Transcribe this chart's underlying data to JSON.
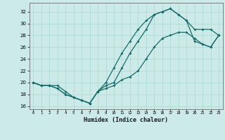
{
  "xlabel": "Humidex (Indice chaleur)",
  "hours": [
    0,
    1,
    2,
    3,
    4,
    5,
    6,
    7,
    8,
    9,
    10,
    11,
    12,
    13,
    14,
    15,
    16,
    17,
    18,
    19,
    20,
    21,
    22,
    23
  ],
  "line1": [
    20.0,
    19.5,
    19.5,
    19.5,
    18.5,
    17.5,
    17.0,
    16.5,
    18.5,
    20.0,
    22.5,
    25.0,
    27.0,
    29.0,
    30.5,
    31.5,
    32.0,
    32.5,
    31.5,
    30.5,
    29.0,
    29.0,
    29.0,
    28.0
  ],
  "line2": [
    20.0,
    19.5,
    19.5,
    19.0,
    18.0,
    17.5,
    17.0,
    16.5,
    18.5,
    19.5,
    20.0,
    22.5,
    25.0,
    27.0,
    29.0,
    31.5,
    32.0,
    32.5,
    31.5,
    30.5,
    27.0,
    26.5,
    26.0,
    28.0
  ],
  "line3": [
    20.0,
    19.5,
    19.5,
    19.0,
    18.0,
    17.5,
    17.0,
    16.5,
    18.5,
    19.0,
    19.5,
    20.5,
    21.0,
    22.0,
    24.0,
    26.0,
    27.5,
    28.0,
    28.5,
    28.5,
    27.5,
    26.5,
    26.0,
    28.0
  ],
  "color": "#1a6b6b",
  "bg_color": "#cceae8",
  "grid_color": "#aad8d5",
  "ylim": [
    15.5,
    33.5
  ],
  "yticks": [
    16,
    18,
    20,
    22,
    24,
    26,
    28,
    30,
    32
  ],
  "xlim": [
    -0.5,
    23.5
  ],
  "xticks": [
    0,
    1,
    2,
    3,
    4,
    5,
    6,
    7,
    8,
    9,
    10,
    11,
    12,
    13,
    14,
    15,
    16,
    17,
    18,
    19,
    20,
    21,
    22,
    23
  ]
}
